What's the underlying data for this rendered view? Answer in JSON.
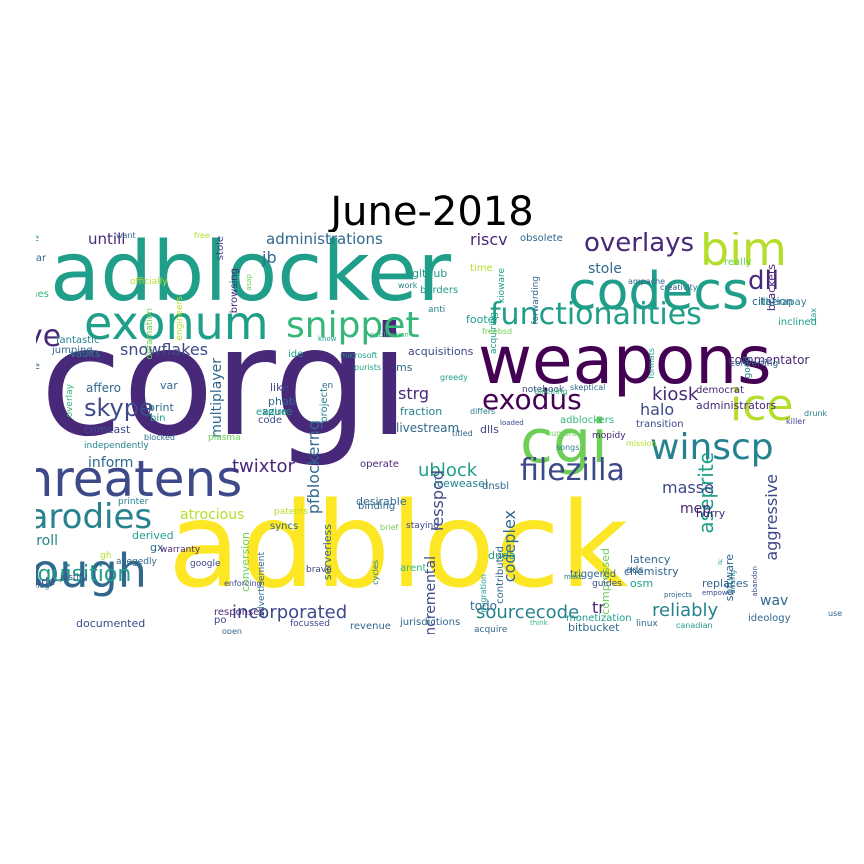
{
  "title": "June-2018",
  "palette": [
    "#440154",
    "#482878",
    "#3e4989",
    "#31688e",
    "#26828e",
    "#1f9e89",
    "#35b779",
    "#6ece58",
    "#b5de2b",
    "#fde725"
  ],
  "words": [
    "corgi",
    "adblock",
    "adblocker",
    "weapons",
    "threatens",
    "cgi",
    "codecs",
    "exonum",
    "bim",
    "snippet",
    "ice",
    "functionalities",
    "cough",
    "winscp",
    "filezilla",
    "parodies",
    "bye",
    "overlays",
    "dll",
    "exodus",
    "skype",
    "aseprite",
    "acquisition",
    "incorporated",
    "sourcecode",
    "reliably",
    "codeplex",
    "kiosk",
    "ublock",
    "twixtor",
    "multiplayer",
    "snowflakes",
    "administrations",
    "untill",
    "riscv",
    "strg",
    "lesspod",
    "blogroll",
    "atrocious",
    "incremental",
    "aggressive",
    "masse",
    "mep",
    "halo",
    "synthesis",
    "inform",
    "pfblockerng",
    "livestream",
    "stole",
    "jb",
    "td",
    "tr",
    "wav",
    "commentator",
    "documented",
    "freenode",
    "chemistry",
    "osm",
    "latency",
    "ads",
    "duda",
    "dnsbl",
    "iceweasel",
    "contributed",
    "serverless",
    "syncs",
    "derived",
    "gx",
    "warranty",
    "conversion",
    "advertisement",
    "compressed",
    "software",
    "replaces",
    "bitbucket",
    "ideology",
    "administrators",
    "democrat",
    "hurry",
    "dlls",
    "fraction",
    "expire",
    "phab",
    "azure",
    "like",
    "print",
    "var",
    "affero",
    "vaults",
    "comcast",
    "bin",
    "code",
    "operate",
    "binding",
    "desirable",
    "acquisitions",
    "ms",
    "obsolete",
    "github",
    "stole",
    "browsing",
    "peculiar",
    "gitlab",
    "source",
    "silicones",
    "people",
    "defamation",
    "engineers",
    "officially",
    "free",
    "project",
    "microsoft",
    "greedy",
    "notebook",
    "skeptical",
    "adblockers",
    "transition",
    "mopidy",
    "ide",
    "kioware",
    "forwarding",
    "acquiring",
    "footer",
    "anti",
    "borders",
    "work",
    "time",
    "really",
    "citation",
    "brackets",
    "liberapay",
    "inclined",
    "good",
    "converting",
    "tax",
    "creativity",
    "ampache",
    "blocking",
    "formats",
    "fantastic",
    "jumping",
    "overlay",
    "independently",
    "sucks",
    "blocked",
    "plasma",
    "allegedly",
    "printer",
    "gh",
    "justify",
    "changelog",
    "google",
    "tracing",
    "responses",
    "po",
    "open",
    "focussed",
    "revenue",
    "jurisdictions",
    "acquire",
    "monetization",
    "think",
    "triggered",
    "guides",
    "make",
    "projects",
    "linux",
    "canadian",
    "empower",
    "arising",
    "abandon",
    "killer",
    "drunk",
    "en",
    "differs",
    "titled",
    "loaded",
    "numerous",
    "songs",
    "mission",
    "brief",
    "patents",
    "staying",
    "arent",
    "brave",
    "cycles",
    "migration",
    "enforcing",
    "know",
    "publication",
    "freebsd",
    "purists",
    "asap",
    "want",
    "todo",
    "use",
    "if",
    "replace"
  ]
}
